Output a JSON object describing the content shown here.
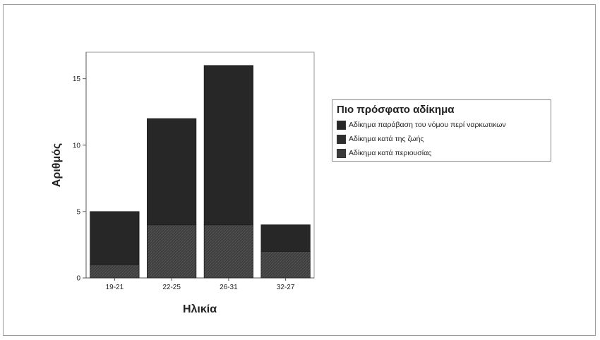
{
  "chart_data": {
    "type": "bar",
    "stacked": true,
    "categories": [
      "19-21",
      "22-25",
      "26-31",
      "32-27"
    ],
    "series": [
      {
        "name": "Αδίκημα κατά περιουσίας",
        "values": [
          1,
          4,
          4,
          2
        ],
        "color": "#3b3b3b"
      },
      {
        "name": "Αδίκημα κατά της ζωής",
        "values": [
          0,
          0,
          0,
          0
        ],
        "color": "#2d2d2d"
      },
      {
        "name": "Αδίκημα παράβαση του νόμου περί ναρκωτικων",
        "values": [
          4,
          8,
          12,
          2
        ],
        "color": "#272727"
      }
    ],
    "totals": [
      5,
      12,
      16,
      4
    ],
    "xlabel": "Ηλικία",
    "ylabel": "Αριθμός",
    "ylim": [
      0,
      17
    ],
    "yticks": [
      0,
      5,
      10,
      15
    ],
    "grid": false,
    "legend_position": "right"
  },
  "legend": {
    "title": "Πιο πρόσφατο αδίκημα",
    "items": [
      {
        "label": "Αδίκημα παράβαση του νόμου περί ναρκωτικων",
        "color": "#272727"
      },
      {
        "label": "Αδίκημα κατά της ζωής",
        "color": "#2d2d2d"
      },
      {
        "label": "Αδίκημα κατά περιουσίας",
        "color": "#3b3b3b"
      }
    ]
  }
}
